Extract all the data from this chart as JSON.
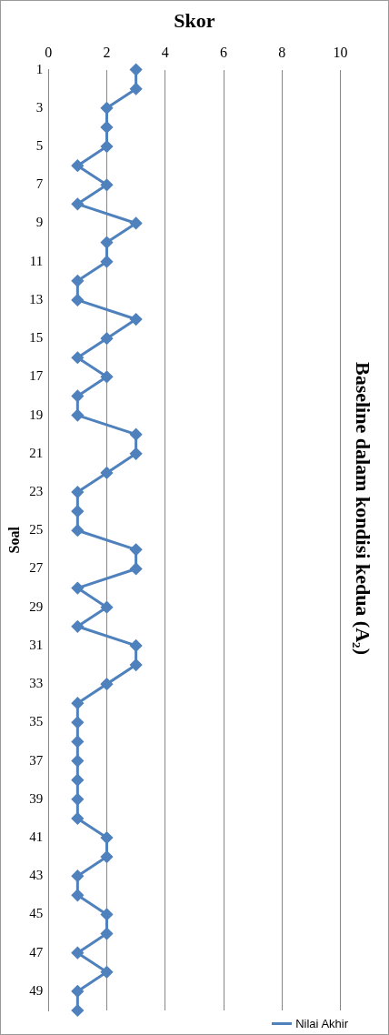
{
  "chart_data": {
    "type": "line",
    "orientation": "horizontal",
    "title": "Baseline dalam kondisi kedua (A₂)",
    "xlabel": "Skor",
    "ylabel": "Soal",
    "categories": [
      "1",
      null,
      "3",
      null,
      "5",
      null,
      "7",
      null,
      "9",
      null,
      "11",
      null,
      "13",
      null,
      "15",
      null,
      "17",
      null,
      "19",
      null,
      "21",
      null,
      "23",
      null,
      "25",
      null,
      "27",
      null,
      "29",
      null,
      "31",
      null,
      "33",
      null,
      "35",
      null,
      "37",
      null,
      "39",
      null,
      "41",
      null,
      "43",
      null,
      "45",
      null,
      "47",
      null,
      "49",
      null
    ],
    "series": [
      {
        "name": "Nilai Akhir",
        "color": "#4f81bd",
        "values": [
          3,
          3,
          2,
          2,
          2,
          1,
          2,
          1,
          3,
          2,
          2,
          1,
          1,
          3,
          2,
          1,
          2,
          1,
          1,
          3,
          3,
          2,
          1,
          1,
          1,
          3,
          3,
          1,
          2,
          1,
          3,
          3,
          2,
          1,
          1,
          1,
          1,
          1,
          1,
          1,
          2,
          2,
          1,
          1,
          2,
          2,
          1,
          2,
          1,
          1
        ]
      }
    ],
    "xlim": [
      0,
      10
    ],
    "xticks": [
      0,
      2,
      4,
      6,
      8,
      10
    ],
    "grid": "x",
    "legend": "bottom right",
    "marker": "diamond",
    "line_style": "solid"
  }
}
